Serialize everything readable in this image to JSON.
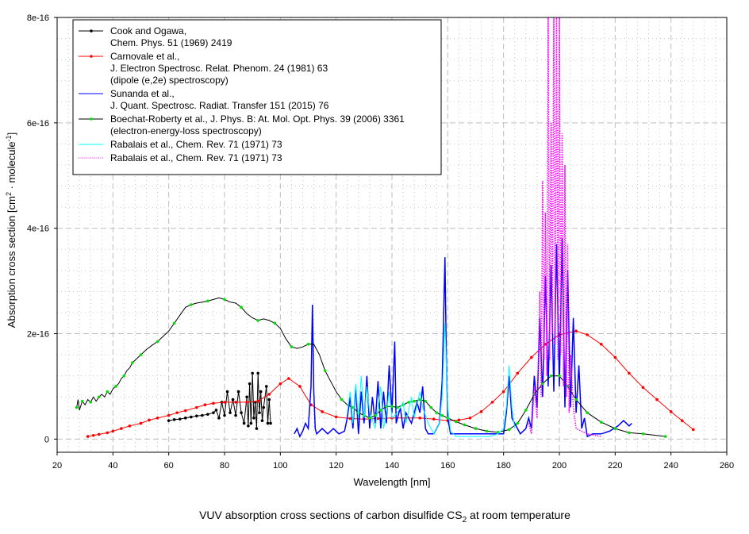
{
  "chart_data": {
    "type": "line",
    "title": "VUV absorption cross sections of carbon disulfide CS",
    "title_subscript": "2",
    "title_suffix": " at room temperature",
    "xlabel": "Wavelength [nm]",
    "ylabel": "Absorption cross section [cm",
    "ylabel_sup1": "2",
    "ylabel_mid": " · molecule",
    "ylabel_sup2": "-1",
    "ylabel_end": "]",
    "y_unit_scale": 1e-16,
    "xlim": [
      20,
      260
    ],
    "ylim": [
      -0.25,
      8
    ],
    "x_ticks": [
      20,
      40,
      60,
      80,
      100,
      120,
      140,
      160,
      180,
      200,
      220,
      240,
      260
    ],
    "x_tick_labels": [
      "20",
      "40",
      "60",
      "80",
      "100",
      "120",
      "140",
      "160",
      "180",
      "200",
      "220",
      "240",
      "260"
    ],
    "y_ticks": [
      0,
      2,
      4,
      6,
      8
    ],
    "y_tick_labels": [
      "0",
      "2e-16",
      "4e-16",
      "6e-16",
      "8e-16"
    ],
    "grid": true,
    "legend_position": "top-left",
    "series": [
      {
        "name": "Cook and Ogawa",
        "legend": [
          "Cook and Ogawa,",
          "Chem. Phys. 51 (1969) 2419"
        ],
        "color": "#000000",
        "marker_color": "#000000",
        "style": "solid",
        "markers": "all",
        "x": [
          60,
          62,
          64,
          66,
          68,
          70,
          72,
          74,
          76,
          77,
          78,
          79,
          80,
          81,
          82,
          83,
          84,
          85,
          86,
          87,
          88,
          88.5,
          89,
          89.5,
          90,
          90.5,
          91,
          91.5,
          92,
          92.5,
          93,
          93.5,
          94,
          95,
          95.5,
          96,
          96.5
        ],
        "y": [
          0.35,
          0.37,
          0.38,
          0.4,
          0.42,
          0.44,
          0.45,
          0.47,
          0.5,
          0.55,
          0.4,
          0.7,
          0.45,
          0.9,
          0.5,
          0.75,
          0.45,
          0.9,
          0.5,
          0.3,
          0.8,
          0.25,
          1.05,
          0.3,
          1.25,
          0.4,
          0.7,
          0.2,
          1.25,
          0.5,
          0.9,
          0.35,
          0.6,
          1.0,
          0.3,
          0.75,
          0.3
        ]
      },
      {
        "name": "Carnovale et al.",
        "legend": [
          "Carnovale et al.,",
          "J. Electron Spectrosc. Relat. Phenom. 24 (1981) 63",
          "(dipole (e,2e) spectroscopy)"
        ],
        "color": "#ff0000",
        "marker_color": "#ff0000",
        "style": "solid",
        "markers": "all",
        "x": [
          31,
          33,
          35,
          38,
          40,
          43,
          46,
          50,
          53,
          56,
          60,
          63,
          66,
          70,
          73,
          76,
          80,
          84,
          88,
          92,
          96,
          100,
          103,
          107,
          111,
          115,
          120,
          125,
          130,
          135,
          140,
          145,
          150,
          155,
          160,
          164,
          168,
          172,
          176,
          180,
          185,
          190,
          195,
          200,
          206,
          210,
          215,
          220,
          225,
          230,
          235,
          240,
          244,
          248
        ],
        "y": [
          0.05,
          0.07,
          0.09,
          0.12,
          0.15,
          0.2,
          0.25,
          0.3,
          0.36,
          0.4,
          0.45,
          0.5,
          0.54,
          0.6,
          0.65,
          0.68,
          0.7,
          0.7,
          0.7,
          0.72,
          0.85,
          1.05,
          1.15,
          1.0,
          0.65,
          0.52,
          0.42,
          0.39,
          0.38,
          0.39,
          0.4,
          0.4,
          0.4,
          0.38,
          0.35,
          0.36,
          0.4,
          0.52,
          0.7,
          0.9,
          1.25,
          1.55,
          1.8,
          1.98,
          2.05,
          1.98,
          1.8,
          1.55,
          1.25,
          0.98,
          0.75,
          0.52,
          0.35,
          0.18
        ]
      },
      {
        "name": "Sunanda et al.",
        "legend": [
          "Sunanda et al.,",
          "J. Quant. Spectrosc. Radiat. Transfer 151 (2015) 76"
        ],
        "color": "#0000ff",
        "style": "solid",
        "markers": "none",
        "x": [
          105,
          106,
          107,
          108,
          109,
          110,
          111,
          111.5,
          112,
          112.5,
          113,
          115,
          117,
          119,
          121,
          123,
          124,
          125,
          126,
          127,
          128,
          129,
          130,
          131,
          132,
          133,
          134,
          135,
          136,
          137,
          138,
          139,
          140,
          141,
          141.5,
          143,
          144,
          145,
          147,
          149,
          150,
          151,
          152,
          153,
          155,
          157,
          158,
          159,
          159.5,
          160,
          161,
          165,
          170,
          175,
          180,
          181,
          182,
          183,
          184,
          186,
          188,
          189,
          190,
          191,
          192,
          193,
          194,
          195,
          196,
          197,
          198,
          199,
          200,
          201,
          202,
          203,
          204,
          205,
          206,
          207,
          208,
          209,
          210,
          212,
          215,
          218,
          221,
          223,
          225,
          226
        ],
        "y": [
          0.1,
          0.2,
          0.05,
          0.15,
          0.3,
          0.2,
          1.0,
          2.55,
          0.9,
          0.2,
          0.1,
          0.2,
          0.1,
          0.2,
          0.1,
          0.15,
          0.4,
          0.8,
          0.2,
          1.0,
          0.1,
          0.9,
          0.3,
          1.2,
          0.2,
          0.8,
          0.3,
          1.1,
          0.2,
          0.9,
          0.3,
          1.4,
          0.5,
          1.85,
          0.3,
          0.6,
          0.2,
          0.5,
          0.3,
          0.7,
          0.5,
          1.0,
          0.2,
          0.1,
          0.1,
          0.3,
          1.1,
          3.45,
          1.5,
          0.4,
          0.1,
          0.1,
          0.1,
          0.1,
          0.1,
          0.5,
          1.2,
          0.4,
          0.3,
          0.1,
          0.2,
          0.4,
          0.2,
          1.2,
          0.6,
          2.3,
          0.8,
          3.1,
          1.0,
          3.3,
          0.9,
          3.7,
          1.0,
          3.8,
          0.6,
          3.2,
          0.6,
          2.3,
          0.5,
          1.4,
          0.2,
          0.4,
          0.05,
          0.1,
          0.1,
          0.15,
          0.25,
          0.35,
          0.25,
          0.3
        ]
      },
      {
        "name": "Boechat-Roberty et al.",
        "legend": [
          "Boechat-Roberty et al., J. Phys. B: At. Mol. Opt. Phys. 39 (2006) 3361",
          "(electron-energy-loss spectroscopy)"
        ],
        "color": "#000000",
        "marker_color": "#00e000",
        "style": "solid",
        "markers": "all",
        "x": [
          27,
          27.5,
          28,
          29,
          30,
          31,
          32,
          33,
          34,
          35,
          36,
          37,
          38,
          39,
          40,
          41,
          42,
          43,
          44,
          45,
          46,
          47,
          48,
          49,
          50,
          52,
          54,
          56,
          58,
          60,
          62,
          64,
          66,
          68,
          70,
          72,
          74,
          76,
          78,
          80,
          82,
          84,
          86,
          88,
          90,
          92,
          94,
          96,
          98,
          100,
          102,
          104,
          106,
          108,
          110,
          112,
          114,
          116,
          118,
          120,
          122,
          124,
          126,
          128,
          130,
          132,
          134,
          136,
          138,
          140,
          142,
          144,
          146,
          148,
          150,
          152,
          154,
          156,
          158,
          160,
          163,
          166,
          170,
          174,
          178,
          182,
          185,
          188,
          191,
          194,
          197,
          200,
          203,
          206,
          210,
          215,
          220,
          225,
          230,
          238
        ],
        "y": [
          0.6,
          0.75,
          0.55,
          0.72,
          0.65,
          0.75,
          0.7,
          0.8,
          0.72,
          0.8,
          0.85,
          0.8,
          0.9,
          0.85,
          0.95,
          1.0,
          1.05,
          1.15,
          1.2,
          1.3,
          1.35,
          1.45,
          1.5,
          1.55,
          1.6,
          1.7,
          1.78,
          1.85,
          1.95,
          2.05,
          2.2,
          2.35,
          2.5,
          2.55,
          2.58,
          2.6,
          2.62,
          2.65,
          2.68,
          2.65,
          2.6,
          2.58,
          2.5,
          2.38,
          2.3,
          2.25,
          2.28,
          2.25,
          2.2,
          2.1,
          1.9,
          1.75,
          1.72,
          1.75,
          1.8,
          1.8,
          1.6,
          1.3,
          1.1,
          0.9,
          0.75,
          0.65,
          0.6,
          0.5,
          0.45,
          0.4,
          0.45,
          0.55,
          0.62,
          0.62,
          0.6,
          0.65,
          0.7,
          0.72,
          0.75,
          0.72,
          0.6,
          0.5,
          0.45,
          0.4,
          0.33,
          0.27,
          0.2,
          0.15,
          0.13,
          0.18,
          0.3,
          0.55,
          0.85,
          1.05,
          1.2,
          1.2,
          1.0,
          0.75,
          0.5,
          0.32,
          0.2,
          0.12,
          0.1,
          0.05
        ]
      },
      {
        "name": "Rabalais et al. (solid)",
        "legend": [
          "Rabalais et al., Chem. Rev. 71 (1971) 73"
        ],
        "color": "#00ffff",
        "style": "solid",
        "markers": "none",
        "x": [
          124,
          125,
          126,
          127,
          128,
          129,
          130,
          131,
          132,
          134,
          135,
          136,
          137,
          138,
          139,
          140,
          142,
          144,
          145,
          147,
          148,
          150,
          151,
          153,
          155,
          157,
          158,
          159,
          160,
          161,
          163,
          170,
          175,
          178,
          180,
          181,
          182,
          183,
          184
        ],
        "y": [
          0.5,
          0.9,
          0.3,
          1.05,
          0.4,
          1.2,
          0.4,
          1.0,
          0.5,
          0.2,
          0.6,
          1.0,
          0.2,
          0.5,
          0.9,
          0.4,
          0.5,
          0.7,
          0.3,
          0.8,
          0.4,
          0.9,
          0.6,
          0.3,
          0.1,
          0.3,
          0.8,
          2.2,
          0.6,
          0.15,
          0.05,
          0.05,
          0.05,
          0.1,
          0.2,
          0.6,
          1.4,
          0.6,
          0.2
        ]
      },
      {
        "name": "Rabalais et al. (dotted)",
        "legend": [
          "Rabalais et al., Chem. Rev. 71 (1971) 73"
        ],
        "color": "#ff00ff",
        "style": "dotted",
        "markers": "none",
        "x": [
          189,
          190,
          191,
          192,
          193,
          193.5,
          194,
          194.5,
          195,
          195.5,
          196,
          196.5,
          197,
          197.5,
          198,
          198.5,
          199,
          199.5,
          200,
          200.5,
          201,
          201.5,
          202,
          202.5,
          203,
          203.5,
          204,
          205,
          206,
          210,
          215
        ],
        "y": [
          0.3,
          0.1,
          1.0,
          0.4,
          2.8,
          0.8,
          4.9,
          1.5,
          4.3,
          1.2,
          8.2,
          1.5,
          6.0,
          2.0,
          8.2,
          1.8,
          8.2,
          1.5,
          8.2,
          1.6,
          5.8,
          1.0,
          5.2,
          0.8,
          3.7,
          0.5,
          1.6,
          0.6,
          0.2,
          0.1,
          0.05
        ]
      }
    ]
  }
}
